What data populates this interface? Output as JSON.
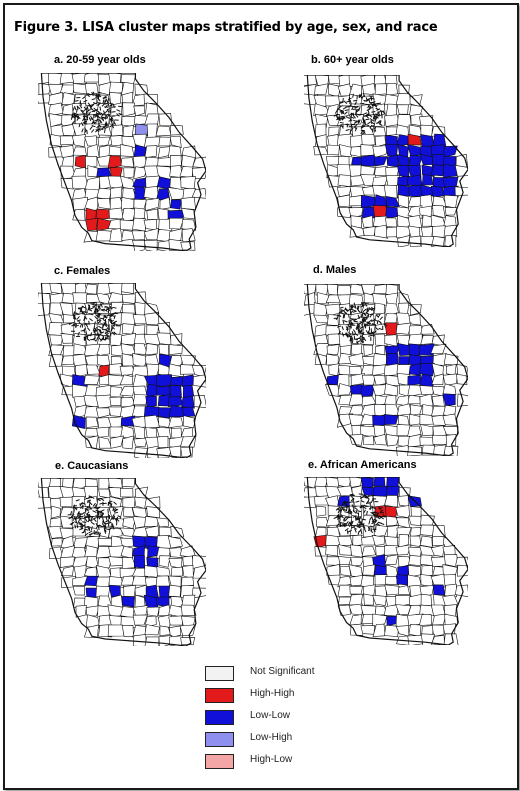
{
  "figure": {
    "title": "Figure 3.  LISA cluster maps stratified by age, sex, and race"
  },
  "panels": [
    {
      "id": "a",
      "label": "a. 20-59 year olds"
    },
    {
      "id": "b",
      "label": "b. 60+ year olds"
    },
    {
      "id": "c",
      "label": "c. Females"
    },
    {
      "id": "d",
      "label": "d. Males"
    },
    {
      "id": "e",
      "label": "e. Caucasians"
    },
    {
      "id": "f",
      "label": "e. African Americans"
    }
  ],
  "legend": {
    "items": [
      {
        "label": "Not Significant",
        "color": "#f2f2f2"
      },
      {
        "label": "High-High",
        "color": "#e31a1c"
      },
      {
        "label": "Low-Low",
        "color": "#1010d8"
      },
      {
        "label": "Low-High",
        "color": "#8f8ff0"
      },
      {
        "label": "High-Low",
        "color": "#f4a6a6"
      }
    ]
  },
  "colors": {
    "background": "#ffffff",
    "boundary": "#111111"
  }
}
